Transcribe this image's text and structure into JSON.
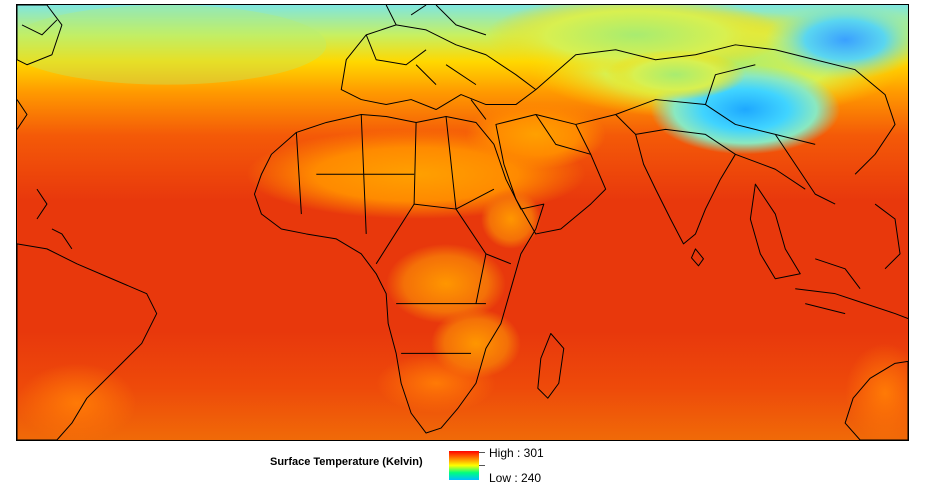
{
  "legend": {
    "title": "Surface Temperature (Kelvin)",
    "high_label": "High : 301",
    "low_label": "Low : 240",
    "high_value": 301,
    "low_value": 240,
    "ramp_colors": [
      "#ff0000",
      "#ff7f00",
      "#ffff00",
      "#00ff7f",
      "#00bfff"
    ]
  },
  "map": {
    "type": "raster-heatmap",
    "variable": "surface-temperature",
    "colors": {
      "hot": "#e8380c",
      "warm": "#ff8c00",
      "mild": "#ffd400",
      "cool": "#b0f040",
      "cold": "#40d8ff",
      "coldest": "#1e90ff"
    }
  }
}
